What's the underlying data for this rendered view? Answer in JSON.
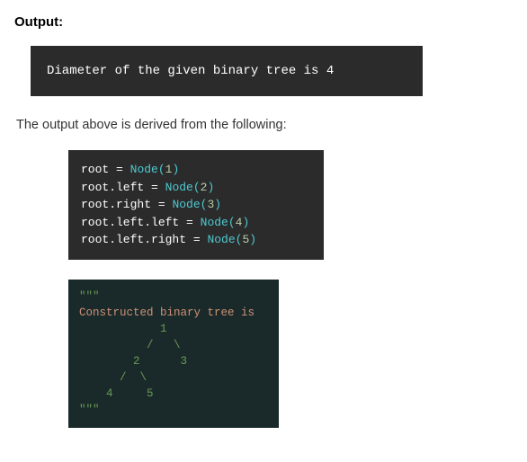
{
  "heading": "Output:",
  "output_text": "Diameter of the given binary tree is 4",
  "description": "The output above is derived from the following:",
  "code": {
    "lines": [
      {
        "prefix": "root ",
        "op": "=",
        "space": " ",
        "call": "Node(",
        "num": "1",
        "close": ")"
      },
      {
        "prefix": "root.left ",
        "op": "=",
        "space": " ",
        "call": "Node(",
        "num": "2",
        "close": ")"
      },
      {
        "prefix": "root.right ",
        "op": "=",
        "space": " ",
        "call": "Node(",
        "num": "3",
        "close": ")"
      },
      {
        "prefix": "root.left.left ",
        "op": "=",
        "space": " ",
        "call": "Node(",
        "num": "4",
        "close": ")"
      },
      {
        "prefix": "root.left.right ",
        "op": "=",
        "space": " ",
        "call": "Node(",
        "num": "5",
        "close": ")"
      }
    ]
  },
  "tree": {
    "quote_open": "\"\"\"",
    "header": "Constructed binary tree is",
    "lines": [
      "            1",
      "          /   \\",
      "        2      3",
      "      /  \\",
      "    4     5",
      ""
    ],
    "quote_close": "\"\"\""
  },
  "colors": {
    "background": "#ffffff",
    "code_bg": "#2b2b2b",
    "tree_bg": "#1a2a2a",
    "text": "#333333",
    "white": "#ffffff",
    "cyan": "#4ec9d0",
    "yellow": "#d7ba7d",
    "green": "#6a9955",
    "num": "#b5cea8",
    "string": "#ce9178"
  }
}
